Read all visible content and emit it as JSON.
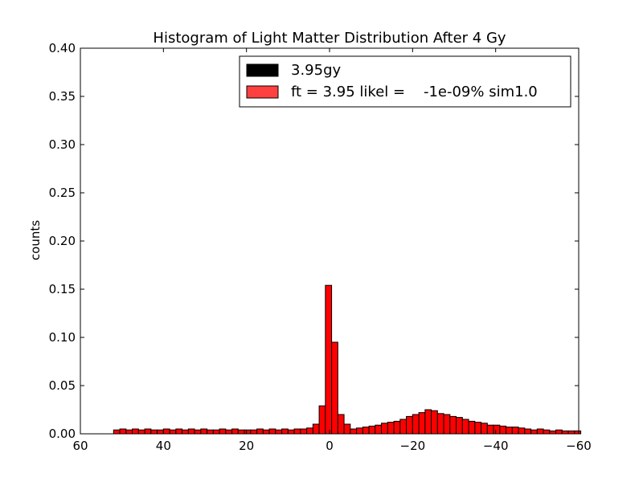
{
  "chart_data": {
    "type": "bar",
    "title": "Histogram of Light Matter Distribution After 4 Gy",
    "xlabel": "",
    "ylabel": "counts",
    "xlim": [
      60,
      -60
    ],
    "ylim": [
      0,
      0.4
    ],
    "x_ticks": [
      "60",
      "40",
      "20",
      "0",
      "−20",
      "−40",
      "−60"
    ],
    "x_tick_values": [
      60,
      40,
      20,
      0,
      -20,
      -40,
      -60
    ],
    "y_ticks": [
      "0.00",
      "0.05",
      "0.10",
      "0.15",
      "0.20",
      "0.25",
      "0.30",
      "0.35",
      "0.40"
    ],
    "y_tick_values": [
      0,
      0.05,
      0.1,
      0.15,
      0.2,
      0.25,
      0.3,
      0.35,
      0.4
    ],
    "bin_width": 1.5,
    "legend_position": "top-right",
    "series": [
      {
        "name": "3.95gy",
        "color": "#000000",
        "values": []
      },
      {
        "name": "ft = 3.95 likel =    -1e-09% sim1.0",
        "color": "#ff0000",
        "edge": "#000000",
        "bins_left": [
          52.0,
          50.5,
          49.0,
          47.5,
          46.0,
          44.5,
          43.0,
          41.5,
          40.0,
          38.5,
          37.0,
          35.5,
          34.0,
          32.5,
          31.0,
          29.5,
          28.0,
          26.5,
          25.0,
          23.5,
          22.0,
          20.5,
          19.0,
          17.5,
          16.0,
          14.5,
          13.0,
          11.5,
          10.0,
          8.5,
          7.0,
          5.5,
          4.0,
          2.5,
          1.0,
          -0.5,
          -2.0,
          -3.5,
          -5.0,
          -6.5,
          -8.0,
          -9.5,
          -11.0,
          -12.5,
          -14.0,
          -15.5,
          -17.0,
          -18.5,
          -20.0,
          -21.5,
          -23.0,
          -24.5,
          -26.0,
          -27.5,
          -29.0,
          -30.5,
          -32.0,
          -33.5,
          -35.0,
          -36.5,
          -38.0,
          -39.5,
          -41.0,
          -42.5,
          -44.0,
          -45.5,
          -47.0,
          -48.5,
          -50.0,
          -51.5,
          -53.0,
          -54.5,
          -56.0,
          -57.5,
          -59.0
        ],
        "values": [
          0.004,
          0.005,
          0.004,
          0.005,
          0.004,
          0.005,
          0.004,
          0.004,
          0.005,
          0.004,
          0.005,
          0.004,
          0.005,
          0.004,
          0.005,
          0.004,
          0.004,
          0.005,
          0.004,
          0.005,
          0.004,
          0.004,
          0.004,
          0.005,
          0.004,
          0.005,
          0.004,
          0.005,
          0.004,
          0.005,
          0.005,
          0.006,
          0.01,
          0.029,
          0.154,
          0.095,
          0.02,
          0.01,
          0.005,
          0.006,
          0.007,
          0.008,
          0.009,
          0.011,
          0.012,
          0.013,
          0.015,
          0.018,
          0.02,
          0.022,
          0.025,
          0.024,
          0.021,
          0.02,
          0.018,
          0.017,
          0.015,
          0.013,
          0.012,
          0.011,
          0.009,
          0.009,
          0.008,
          0.007,
          0.007,
          0.006,
          0.005,
          0.004,
          0.005,
          0.004,
          0.003,
          0.004,
          0.003,
          0.003,
          0.003
        ]
      }
    ]
  }
}
